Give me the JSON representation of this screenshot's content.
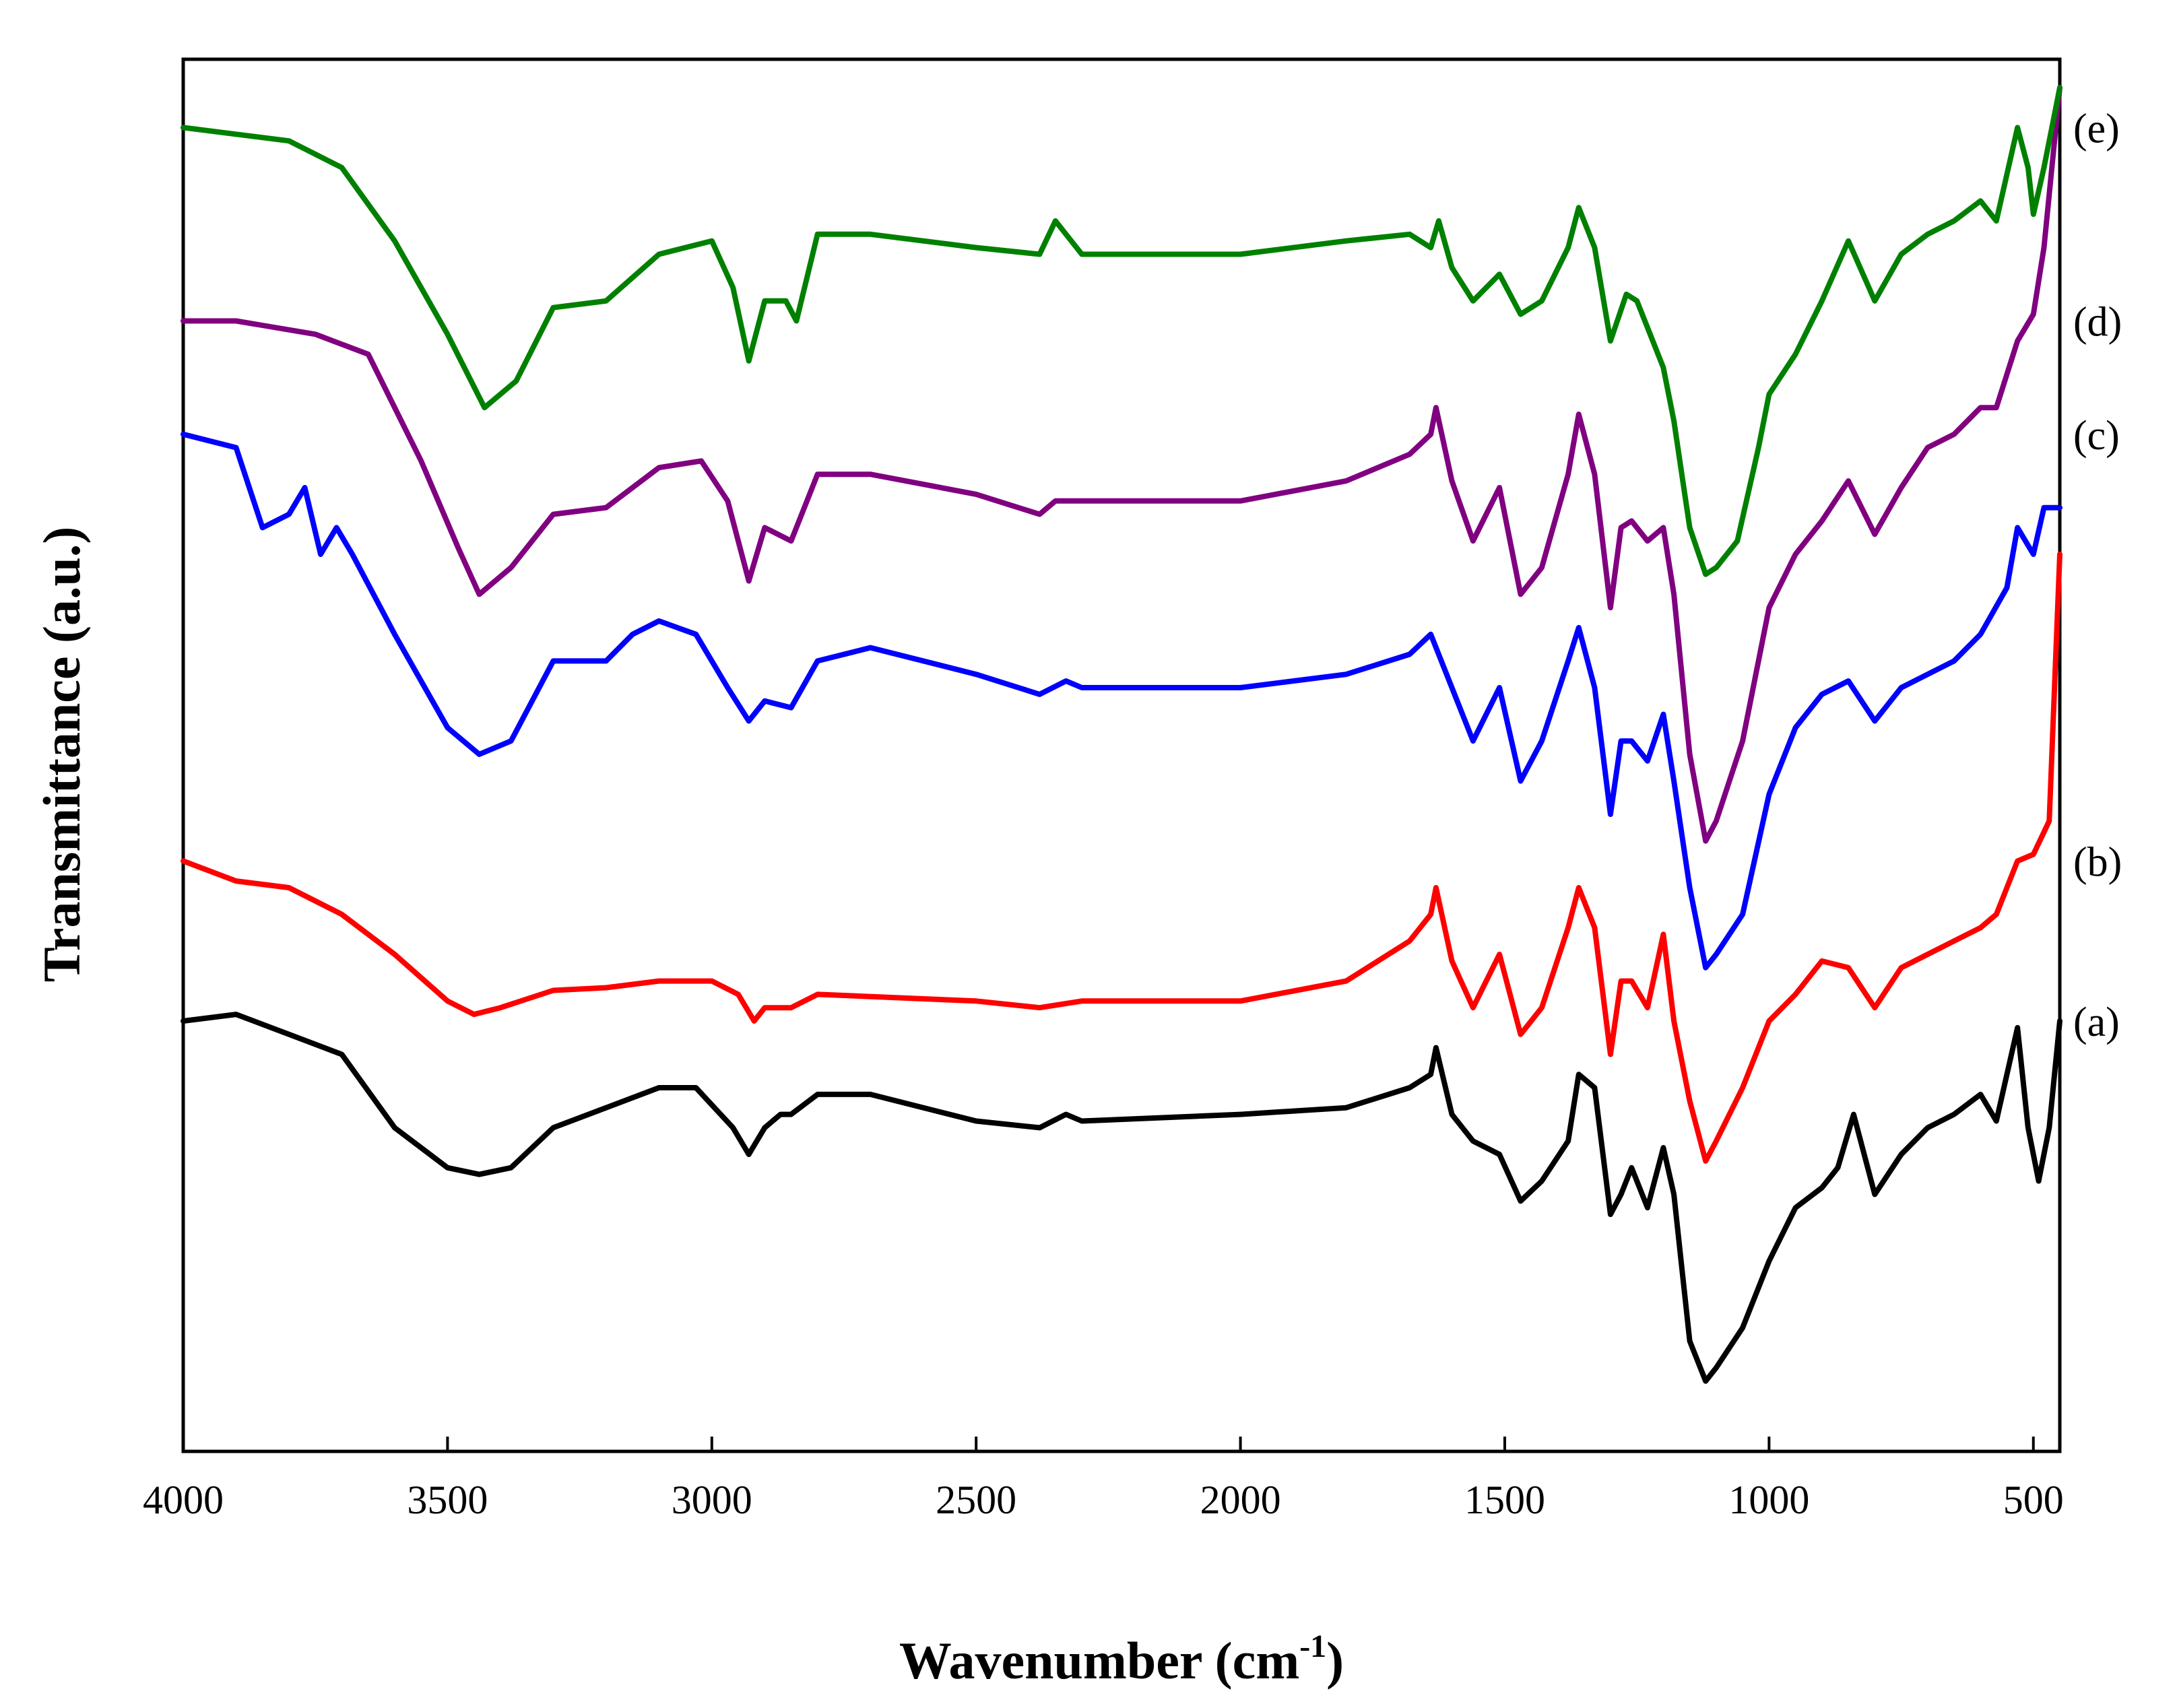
{
  "chart_data": {
    "type": "line",
    "title": "",
    "xlabel": "Wavenumber",
    "xlabel_unit_base": "(cm",
    "xlabel_unit_sup": "-1",
    "xlabel_unit_close": ")",
    "ylabel": "Transmittance (a.u.)",
    "xlim": [
      4000,
      450
    ],
    "ylim": [
      0,
      100
    ],
    "x_ticks": [
      4000,
      3500,
      3000,
      2500,
      2000,
      1500,
      1000,
      500
    ],
    "y_ticks_shown": false,
    "grid": false,
    "legend_placement": "labels at right edge",
    "series": [
      {
        "name": "(a)",
        "color": "#000000",
        "points": [
          [
            4000,
            30
          ],
          [
            3900,
            30.5
          ],
          [
            3800,
            29
          ],
          [
            3700,
            27.5
          ],
          [
            3600,
            22
          ],
          [
            3500,
            19
          ],
          [
            3440,
            18.5
          ],
          [
            3380,
            19
          ],
          [
            3300,
            22
          ],
          [
            3200,
            23.5
          ],
          [
            3100,
            25
          ],
          [
            3030,
            25
          ],
          [
            2960,
            22
          ],
          [
            2930,
            20
          ],
          [
            2900,
            22
          ],
          [
            2870,
            23
          ],
          [
            2850,
            23
          ],
          [
            2800,
            24.5
          ],
          [
            2700,
            24.5
          ],
          [
            2500,
            22.5
          ],
          [
            2380,
            22
          ],
          [
            2330,
            23
          ],
          [
            2300,
            22.5
          ],
          [
            2000,
            23
          ],
          [
            1800,
            23.5
          ],
          [
            1680,
            25
          ],
          [
            1640,
            26
          ],
          [
            1630,
            28
          ],
          [
            1600,
            23
          ],
          [
            1560,
            21
          ],
          [
            1510,
            20
          ],
          [
            1470,
            16.5
          ],
          [
            1430,
            18
          ],
          [
            1380,
            21
          ],
          [
            1360,
            26
          ],
          [
            1330,
            25
          ],
          [
            1300,
            15.5
          ],
          [
            1280,
            17
          ],
          [
            1260,
            19
          ],
          [
            1230,
            16
          ],
          [
            1200,
            20.5
          ],
          [
            1180,
            17
          ],
          [
            1150,
            6
          ],
          [
            1120,
            3
          ],
          [
            1100,
            4
          ],
          [
            1050,
            7
          ],
          [
            1000,
            12
          ],
          [
            950,
            16
          ],
          [
            900,
            17.5
          ],
          [
            870,
            19
          ],
          [
            840,
            23
          ],
          [
            800,
            17
          ],
          [
            750,
            20
          ],
          [
            700,
            22
          ],
          [
            650,
            23
          ],
          [
            600,
            24.5
          ],
          [
            570,
            22.5
          ],
          [
            530,
            29.5
          ],
          [
            510,
            22
          ],
          [
            490,
            18
          ],
          [
            470,
            22
          ],
          [
            450,
            30
          ]
        ]
      },
      {
        "name": "(b)",
        "color": "#ff0000",
        "points": [
          [
            4000,
            42
          ],
          [
            3900,
            40.5
          ],
          [
            3800,
            40
          ],
          [
            3700,
            38
          ],
          [
            3600,
            35
          ],
          [
            3500,
            31.5
          ],
          [
            3450,
            30.5
          ],
          [
            3400,
            31
          ],
          [
            3300,
            32.3
          ],
          [
            3200,
            32.5
          ],
          [
            3100,
            33
          ],
          [
            3000,
            33
          ],
          [
            2950,
            32
          ],
          [
            2920,
            30
          ],
          [
            2900,
            31
          ],
          [
            2850,
            31
          ],
          [
            2800,
            32
          ],
          [
            2500,
            31.5
          ],
          [
            2380,
            31
          ],
          [
            2300,
            31.5
          ],
          [
            2000,
            31.5
          ],
          [
            1800,
            33
          ],
          [
            1680,
            36
          ],
          [
            1640,
            38
          ],
          [
            1630,
            40
          ],
          [
            1600,
            34.5
          ],
          [
            1560,
            31
          ],
          [
            1510,
            35
          ],
          [
            1470,
            29
          ],
          [
            1430,
            31
          ],
          [
            1380,
            37
          ],
          [
            1360,
            40
          ],
          [
            1330,
            37
          ],
          [
            1300,
            27.5
          ],
          [
            1280,
            33
          ],
          [
            1260,
            33
          ],
          [
            1230,
            31
          ],
          [
            1200,
            36.5
          ],
          [
            1180,
            30
          ],
          [
            1150,
            24
          ],
          [
            1120,
            19.5
          ],
          [
            1100,
            21
          ],
          [
            1050,
            25
          ],
          [
            1000,
            30
          ],
          [
            950,
            32
          ],
          [
            900,
            34.5
          ],
          [
            850,
            34
          ],
          [
            800,
            31
          ],
          [
            750,
            34
          ],
          [
            700,
            35
          ],
          [
            650,
            36
          ],
          [
            600,
            37
          ],
          [
            570,
            38
          ],
          [
            530,
            42
          ],
          [
            500,
            42.5
          ],
          [
            470,
            45
          ],
          [
            450,
            65
          ]
        ]
      },
      {
        "name": "(c)",
        "color": "#0000ff",
        "points": [
          [
            4000,
            74
          ],
          [
            3900,
            73
          ],
          [
            3850,
            67
          ],
          [
            3800,
            68
          ],
          [
            3770,
            70
          ],
          [
            3740,
            65
          ],
          [
            3710,
            67
          ],
          [
            3680,
            65
          ],
          [
            3600,
            59
          ],
          [
            3500,
            52
          ],
          [
            3440,
            50
          ],
          [
            3380,
            51
          ],
          [
            3300,
            57
          ],
          [
            3200,
            57
          ],
          [
            3150,
            59
          ],
          [
            3100,
            60
          ],
          [
            3030,
            59
          ],
          [
            2970,
            55
          ],
          [
            2930,
            52.5
          ],
          [
            2900,
            54
          ],
          [
            2850,
            53.5
          ],
          [
            2800,
            57
          ],
          [
            2700,
            58
          ],
          [
            2500,
            56
          ],
          [
            2380,
            54.5
          ],
          [
            2330,
            55.5
          ],
          [
            2300,
            55
          ],
          [
            2000,
            55
          ],
          [
            1800,
            56
          ],
          [
            1680,
            57.5
          ],
          [
            1640,
            59
          ],
          [
            1600,
            55
          ],
          [
            1560,
            51
          ],
          [
            1510,
            55
          ],
          [
            1470,
            48
          ],
          [
            1430,
            51
          ],
          [
            1380,
            57
          ],
          [
            1360,
            59.5
          ],
          [
            1330,
            55
          ],
          [
            1300,
            45.5
          ],
          [
            1280,
            51
          ],
          [
            1260,
            51
          ],
          [
            1230,
            49.5
          ],
          [
            1200,
            53
          ],
          [
            1180,
            48
          ],
          [
            1150,
            40
          ],
          [
            1120,
            34
          ],
          [
            1100,
            35
          ],
          [
            1050,
            38
          ],
          [
            1000,
            47
          ],
          [
            950,
            52
          ],
          [
            900,
            54.5
          ],
          [
            850,
            55.5
          ],
          [
            800,
            52.5
          ],
          [
            750,
            55
          ],
          [
            700,
            56
          ],
          [
            650,
            57
          ],
          [
            600,
            59
          ],
          [
            550,
            62.5
          ],
          [
            530,
            67
          ],
          [
            500,
            65
          ],
          [
            480,
            68.5
          ],
          [
            450,
            68.5
          ]
        ]
      },
      {
        "name": "(d)",
        "color": "#800080",
        "points": [
          [
            4000,
            82.5
          ],
          [
            3900,
            82.5
          ],
          [
            3750,
            81.5
          ],
          [
            3650,
            80
          ],
          [
            3550,
            72
          ],
          [
            3480,
            65.5
          ],
          [
            3440,
            62
          ],
          [
            3380,
            64
          ],
          [
            3300,
            68
          ],
          [
            3200,
            68.5
          ],
          [
            3100,
            71.5
          ],
          [
            3020,
            72
          ],
          [
            2970,
            69
          ],
          [
            2930,
            63
          ],
          [
            2900,
            67
          ],
          [
            2850,
            66
          ],
          [
            2800,
            71
          ],
          [
            2700,
            71
          ],
          [
            2500,
            69.5
          ],
          [
            2380,
            68
          ],
          [
            2350,
            69
          ],
          [
            2300,
            69
          ],
          [
            2000,
            69
          ],
          [
            1800,
            70.5
          ],
          [
            1680,
            72.5
          ],
          [
            1640,
            74
          ],
          [
            1630,
            76
          ],
          [
            1600,
            70.5
          ],
          [
            1560,
            66
          ],
          [
            1510,
            70
          ],
          [
            1470,
            62
          ],
          [
            1430,
            64
          ],
          [
            1380,
            71
          ],
          [
            1360,
            75.5
          ],
          [
            1330,
            71
          ],
          [
            1300,
            61
          ],
          [
            1280,
            67
          ],
          [
            1260,
            67.5
          ],
          [
            1230,
            66
          ],
          [
            1200,
            67
          ],
          [
            1180,
            62
          ],
          [
            1150,
            50
          ],
          [
            1120,
            43.5
          ],
          [
            1100,
            45
          ],
          [
            1050,
            51
          ],
          [
            1000,
            61
          ],
          [
            950,
            65
          ],
          [
            900,
            67.5
          ],
          [
            850,
            70.5
          ],
          [
            800,
            66.5
          ],
          [
            750,
            70
          ],
          [
            700,
            73
          ],
          [
            650,
            74
          ],
          [
            600,
            76
          ],
          [
            570,
            76
          ],
          [
            530,
            81
          ],
          [
            500,
            83
          ],
          [
            480,
            88
          ],
          [
            450,
            100
          ]
        ]
      },
      {
        "name": "(e)",
        "color": "#008000",
        "points": [
          [
            4000,
            97
          ],
          [
            3900,
            96.5
          ],
          [
            3800,
            96
          ],
          [
            3700,
            94
          ],
          [
            3600,
            88.5
          ],
          [
            3500,
            81.5
          ],
          [
            3430,
            76
          ],
          [
            3370,
            78
          ],
          [
            3300,
            83.5
          ],
          [
            3200,
            84
          ],
          [
            3100,
            87.5
          ],
          [
            3000,
            88.5
          ],
          [
            2960,
            85
          ],
          [
            2930,
            79.5
          ],
          [
            2900,
            84
          ],
          [
            2860,
            84
          ],
          [
            2840,
            82.5
          ],
          [
            2800,
            89
          ],
          [
            2700,
            89
          ],
          [
            2500,
            88
          ],
          [
            2380,
            87.5
          ],
          [
            2350,
            90
          ],
          [
            2320,
            88.5
          ],
          [
            2300,
            87.5
          ],
          [
            2000,
            87.5
          ],
          [
            1800,
            88.5
          ],
          [
            1680,
            89
          ],
          [
            1640,
            88
          ],
          [
            1625,
            90
          ],
          [
            1600,
            86.5
          ],
          [
            1560,
            84
          ],
          [
            1510,
            86
          ],
          [
            1470,
            83
          ],
          [
            1430,
            84
          ],
          [
            1380,
            88
          ],
          [
            1360,
            91
          ],
          [
            1330,
            88
          ],
          [
            1300,
            81
          ],
          [
            1270,
            84.5
          ],
          [
            1250,
            84
          ],
          [
            1230,
            82
          ],
          [
            1200,
            79
          ],
          [
            1180,
            75
          ],
          [
            1150,
            67
          ],
          [
            1120,
            63.5
          ],
          [
            1100,
            64
          ],
          [
            1060,
            66
          ],
          [
            1020,
            73
          ],
          [
            1000,
            77
          ],
          [
            950,
            80
          ],
          [
            900,
            84
          ],
          [
            850,
            88.5
          ],
          [
            800,
            84
          ],
          [
            750,
            87.5
          ],
          [
            700,
            89
          ],
          [
            650,
            90
          ],
          [
            600,
            91.5
          ],
          [
            570,
            90
          ],
          [
            530,
            97
          ],
          [
            510,
            94
          ],
          [
            500,
            90.5
          ],
          [
            480,
            94
          ],
          [
            460,
            98
          ],
          [
            450,
            100
          ]
        ]
      }
    ]
  }
}
